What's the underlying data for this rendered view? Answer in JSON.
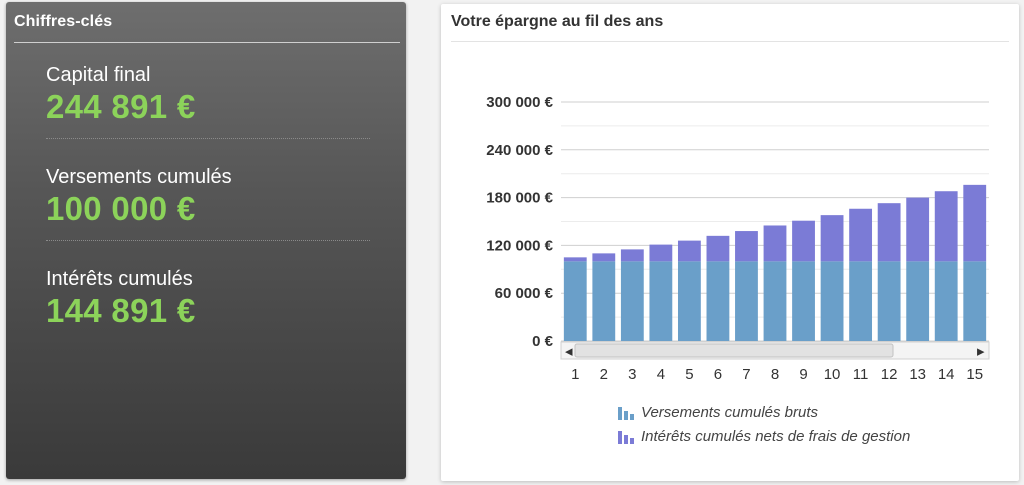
{
  "key_figures": {
    "title": "Chiffres-clés",
    "items": [
      {
        "label": "Capital final",
        "value": "244 891 €"
      },
      {
        "label": "Versements cumulés",
        "value": "100 000 €"
      },
      {
        "label": "Intérêts cumulés",
        "value": "144 891 €"
      }
    ]
  },
  "chart_data": {
    "type": "bar",
    "stacked": true,
    "title": "Votre épargne au fil des ans",
    "categories": [
      "1",
      "2",
      "3",
      "4",
      "5",
      "6",
      "7",
      "8",
      "9",
      "10",
      "11",
      "12",
      "13",
      "14",
      "15"
    ],
    "series": [
      {
        "name": "Versements cumulés bruts",
        "color": "#6a9fc9",
        "values": [
          100000,
          100000,
          100000,
          100000,
          100000,
          100000,
          100000,
          100000,
          100000,
          100000,
          100000,
          100000,
          100000,
          100000,
          100000
        ]
      },
      {
        "name": "Intérêts cumulés nets de frais de gestion",
        "color": "#7b7bd6",
        "values": [
          5000,
          10000,
          15000,
          21000,
          26000,
          32000,
          38000,
          45000,
          51000,
          58000,
          66000,
          73000,
          80000,
          88000,
          96000
        ]
      }
    ],
    "ylim": [
      0,
      300000
    ],
    "yticks": [
      0,
      60000,
      120000,
      180000,
      240000,
      300000
    ],
    "ytick_labels": [
      "0 €",
      "60 000 €",
      "120 000 €",
      "180 000 €",
      "240 000 €",
      "300 000 €"
    ],
    "grid": true,
    "legend_position": "bottom",
    "scrollbar": {
      "left_arrow": "◂",
      "right_arrow": "▸"
    }
  }
}
